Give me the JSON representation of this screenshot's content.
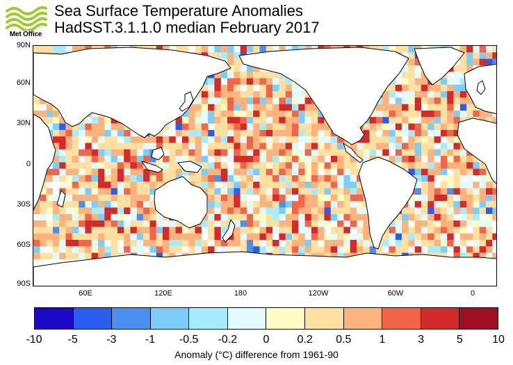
{
  "logo": {
    "text": "Met Office",
    "wave_color": "#9ecc2c"
  },
  "header": {
    "title": "Sea Surface Temperature Anomalies",
    "subtitle": "HadSST.3.1.1.0 median February 2017"
  },
  "map": {
    "lat_labels": [
      "90N",
      "60N",
      "30N",
      "0",
      "30S",
      "60S",
      "90S"
    ],
    "lon_labels": [
      "60E",
      "120E",
      "180",
      "120W",
      "60W",
      "0"
    ]
  },
  "colorbar": {
    "colors": [
      "#1c0ac8",
      "#2b5cf0",
      "#4a90f0",
      "#7ccdf8",
      "#a8ebfa",
      "#e3fbfd",
      "#fffcc4",
      "#fee0a0",
      "#fdb37d",
      "#f36548",
      "#d52a2a",
      "#a10e23"
    ],
    "tick_labels": [
      "-10",
      "-5",
      "-3",
      "-1",
      "-0.5",
      "-0.2",
      "0",
      "0.2",
      "0.5",
      "1",
      "3",
      "5",
      "10"
    ],
    "caption": "Anomaly (°C) difference from 1961-90"
  },
  "colors": {
    "land": "#ffffff",
    "coastline": "#000000",
    "no_data": "#ffffff"
  }
}
